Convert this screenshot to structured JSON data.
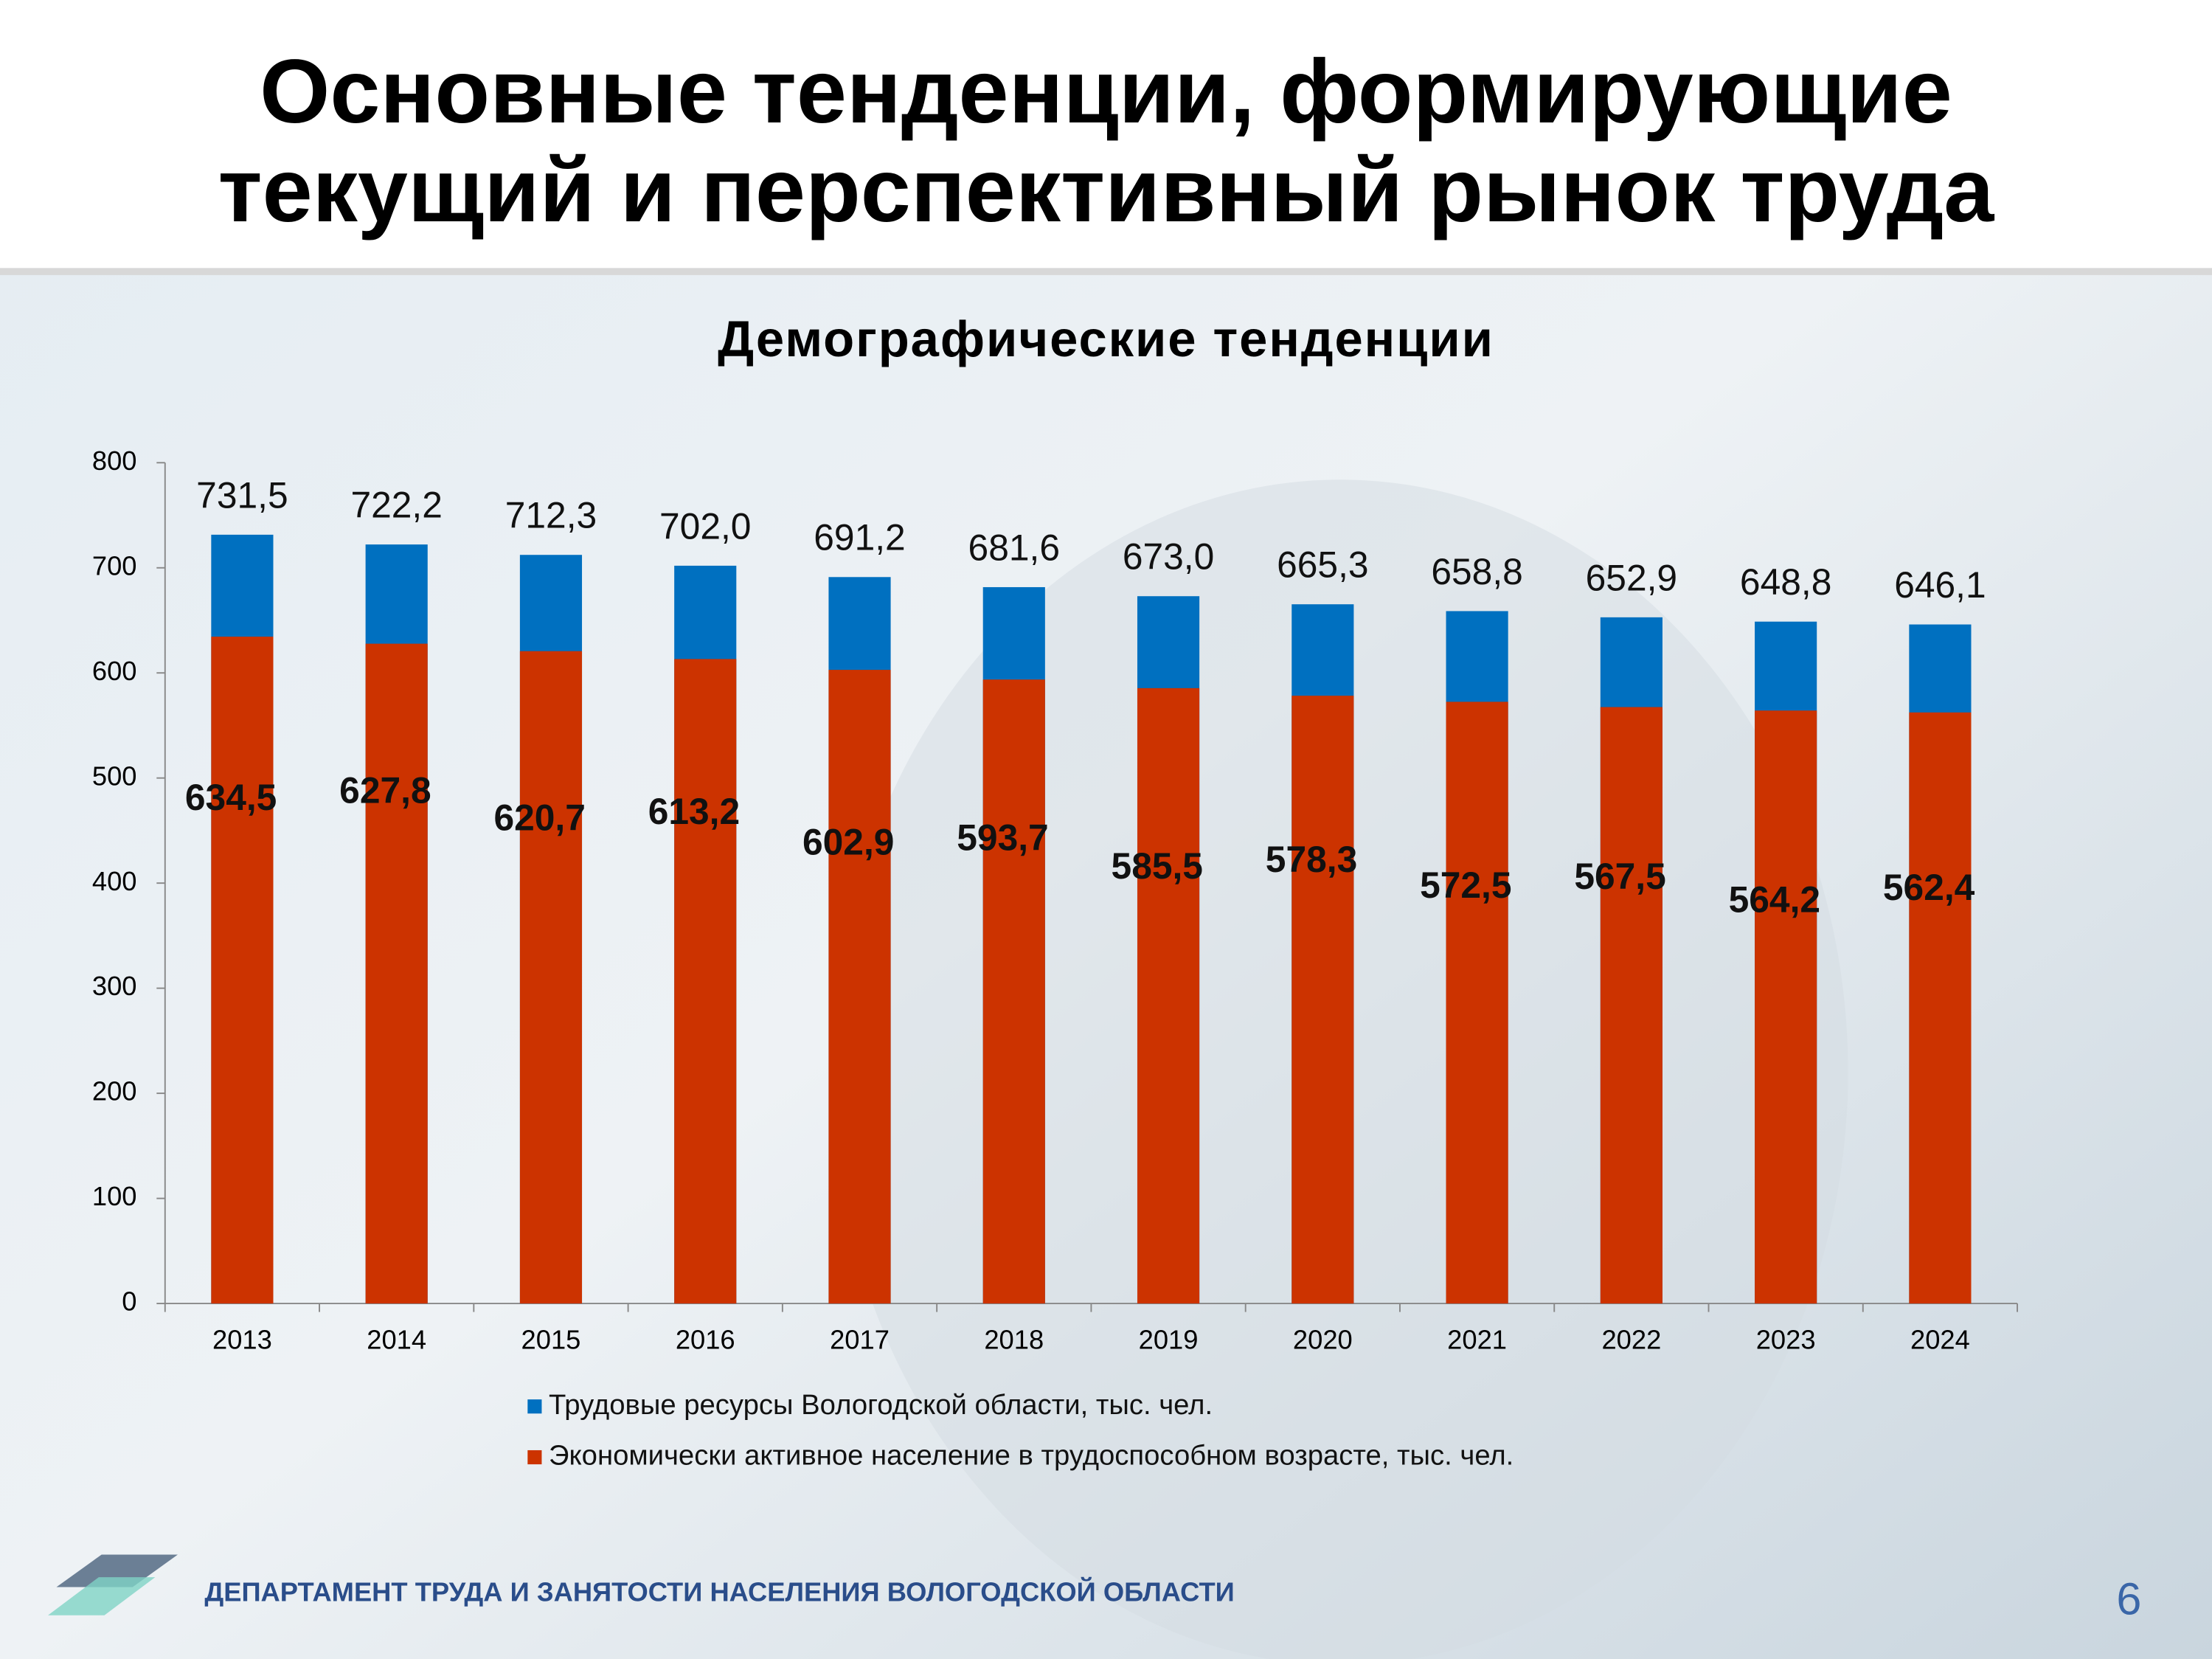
{
  "slide": {
    "title_lines": [
      "Основные тенденции, формирующие",
      "текущий и перспективный рынок труда"
    ],
    "footer": "ДЕПАРТАМЕНТ ТРУДА И ЗАНЯТОСТИ НАСЕЛЕНИЯ ВОЛОГОДСКОЙ ОБЛАСТИ",
    "page_number": 6
  },
  "chart_data": {
    "type": "bar",
    "barmode": "overlay",
    "title": "Демографические тенденции",
    "categories": [
      "2013",
      "2014",
      "2015",
      "2016",
      "2017",
      "2018",
      "2019",
      "2020",
      "2021",
      "2022",
      "2023",
      "2024"
    ],
    "series": [
      {
        "name": "Трудовые ресурсы Вологодской области, тыс. чел.",
        "color": "#0070c0",
        "values": [
          731.5,
          722.2,
          712.3,
          702.0,
          691.2,
          681.6,
          673.0,
          665.3,
          658.8,
          652.9,
          648.8,
          646.1
        ],
        "value_labels": [
          "731,5",
          "722,2",
          "712,3",
          "702,0",
          "691,2",
          "681,6",
          "673,0",
          "665,3",
          "658,8",
          "652,9",
          "648,8",
          "646,1"
        ]
      },
      {
        "name": "Экономически активное население в трудоспособном возрасте, тыс. чел.",
        "color": "#cc3300",
        "values": [
          634.5,
          627.8,
          620.7,
          613.2,
          602.9,
          593.7,
          585.5,
          578.3,
          572.5,
          567.5,
          564.2,
          562.4
        ],
        "value_labels": [
          "634,5",
          "627,8",
          "620,7",
          "613,2",
          "602,9",
          "593,7",
          "585,5",
          "578,3",
          "572,5",
          "567,5",
          "564,2",
          "562,4"
        ]
      }
    ],
    "ylim": [
      0,
      800
    ],
    "yticks": [
      0,
      100,
      200,
      300,
      400,
      500,
      600,
      700,
      800
    ],
    "grid": false
  }
}
